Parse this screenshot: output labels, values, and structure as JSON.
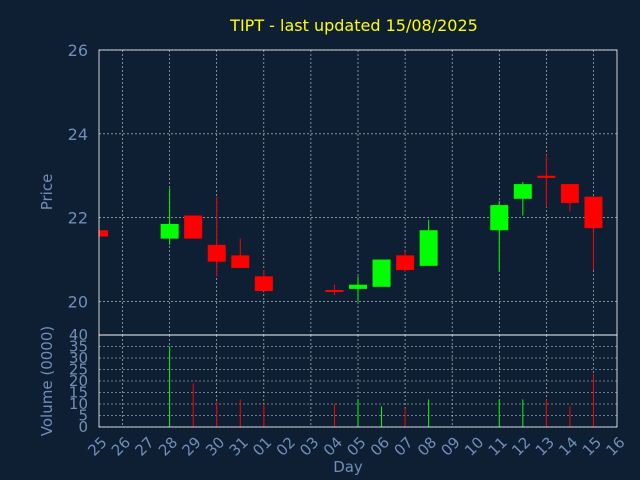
{
  "chart_data": {
    "type": "candlestick",
    "title": "TIPT - last updated 15/08/2025",
    "xlabel": "Day",
    "ylabel": "Price",
    "volume_label": "Volume (0000)",
    "x_labels": [
      "25",
      "26",
      "27",
      "28",
      "29",
      "30",
      "31",
      "01",
      "02",
      "03",
      "04",
      "05",
      "06",
      "07",
      "08",
      "09",
      "10",
      "11",
      "12",
      "13",
      "14",
      "15",
      "16"
    ],
    "price_ylim": [
      19.2,
      26
    ],
    "price_ticks": [
      "20",
      "22",
      "24",
      "26"
    ],
    "volume_ylim": [
      0,
      40
    ],
    "volume_ticks": [
      "0",
      "5",
      "10",
      "15",
      "20",
      "25",
      "30",
      "35",
      "40"
    ],
    "grid": true,
    "colors": {
      "up": "#00ff00",
      "down": "#ff0000",
      "flat": "#ff0000",
      "background": "#0f1f33",
      "title": "#ffff00",
      "axis_text": "#6f8fb8"
    },
    "candles": [
      {
        "day": "25",
        "open": 21.7,
        "high": 21.7,
        "low": 21.55,
        "close": 21.55
      },
      {
        "day": "28",
        "open": 21.5,
        "high": 22.7,
        "low": 21.35,
        "close": 21.85
      },
      {
        "day": "29",
        "open": 22.05,
        "high": 22.05,
        "low": 21.5,
        "close": 21.5
      },
      {
        "day": "30",
        "open": 21.35,
        "high": 22.5,
        "low": 20.6,
        "close": 20.95
      },
      {
        "day": "31",
        "open": 21.1,
        "high": 21.5,
        "low": 20.8,
        "close": 20.8
      },
      {
        "day": "01",
        "open": 20.6,
        "high": 20.75,
        "low": 20.25,
        "close": 20.25
      },
      {
        "day": "04",
        "open": 20.25,
        "high": 20.4,
        "low": 20.15,
        "close": 20.25
      },
      {
        "day": "05",
        "open": 20.3,
        "high": 20.6,
        "low": 20.0,
        "close": 20.4
      },
      {
        "day": "06",
        "open": 20.35,
        "high": 21.0,
        "low": 20.35,
        "close": 21.0
      },
      {
        "day": "07",
        "open": 21.1,
        "high": 21.2,
        "low": 20.7,
        "close": 20.75
      },
      {
        "day": "08",
        "open": 20.85,
        "high": 21.95,
        "low": 20.85,
        "close": 21.7
      },
      {
        "day": "11",
        "open": 21.7,
        "high": 22.4,
        "low": 20.7,
        "close": 22.3
      },
      {
        "day": "12",
        "open": 22.45,
        "high": 22.85,
        "low": 22.05,
        "close": 22.8
      },
      {
        "day": "13",
        "open": 23.0,
        "high": 23.5,
        "low": 22.25,
        "close": 22.95
      },
      {
        "day": "14",
        "open": 22.8,
        "high": 22.8,
        "low": 22.15,
        "close": 22.35
      },
      {
        "day": "15",
        "open": 22.5,
        "high": 22.5,
        "low": 20.75,
        "close": 21.75
      }
    ],
    "volume": [
      {
        "day": "25",
        "value": 0
      },
      {
        "day": "28",
        "value": 35
      },
      {
        "day": "29",
        "value": 19
      },
      {
        "day": "30",
        "value": 11
      },
      {
        "day": "31",
        "value": 12
      },
      {
        "day": "01",
        "value": 10
      },
      {
        "day": "04",
        "value": 10
      },
      {
        "day": "05",
        "value": 12
      },
      {
        "day": "06",
        "value": 9
      },
      {
        "day": "07",
        "value": 8
      },
      {
        "day": "08",
        "value": 12
      },
      {
        "day": "11",
        "value": 12
      },
      {
        "day": "12",
        "value": 12
      },
      {
        "day": "13",
        "value": 12
      },
      {
        "day": "14",
        "value": 9
      },
      {
        "day": "15",
        "value": 23
      }
    ]
  }
}
